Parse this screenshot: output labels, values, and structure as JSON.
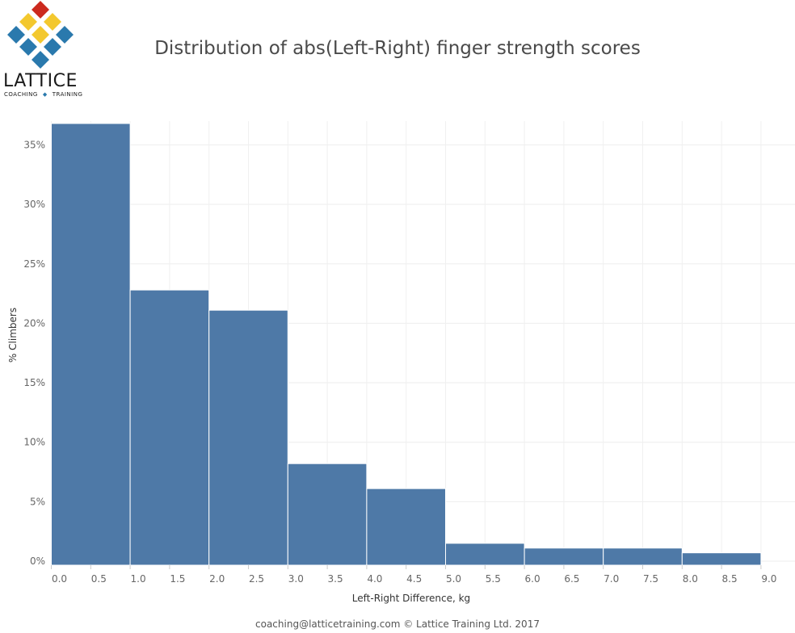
{
  "logo": {
    "word": "LATTICE",
    "sub_left": "COACHING",
    "sub_right": "TRAINING",
    "colors": {
      "red": "#cc2a1e",
      "yellow": "#f3c82e",
      "blue": "#2a79ad"
    }
  },
  "footer": {
    "text": "coaching@latticetraining.com © Lattice Training Ltd. 2017"
  },
  "chart_data": {
    "type": "bar",
    "title": "Distribution of abs(Left-Right) finger strength scores",
    "xlabel": "Left-Right Difference, kg",
    "ylabel": "% Climbers",
    "bin_edges": [
      0,
      1,
      2,
      3,
      4,
      5,
      6,
      7,
      8,
      9
    ],
    "values": [
      36.8,
      22.8,
      21.1,
      8.2,
      6.1,
      1.5,
      1.1,
      1.1,
      0.7
    ],
    "xlim": [
      -0.1,
      9.3
    ],
    "ylim": [
      -0.5,
      38
    ],
    "x_ticks": [
      0,
      0.5,
      1,
      1.5,
      2,
      2.5,
      3,
      3.5,
      4,
      4.5,
      5,
      5.5,
      6,
      6.5,
      7,
      7.5,
      8,
      8.5,
      9
    ],
    "x_tick_labels": [
      "0.0",
      "0.5",
      "1.0",
      "1.5",
      "2.0",
      "2.5",
      "3.0",
      "3.5",
      "4.0",
      "4.5",
      "5.0",
      "5.5",
      "6.0",
      "6.5",
      "7.0",
      "7.5",
      "8.0",
      "8.5",
      "9.0"
    ],
    "y_ticks": [
      0,
      5,
      10,
      15,
      20,
      25,
      30,
      35
    ],
    "y_tick_labels": [
      "0%",
      "5%",
      "10%",
      "15%",
      "20%",
      "25%",
      "30%",
      "35%"
    ],
    "bar_color": "#4e79a7",
    "grid": true,
    "legend": "none"
  }
}
